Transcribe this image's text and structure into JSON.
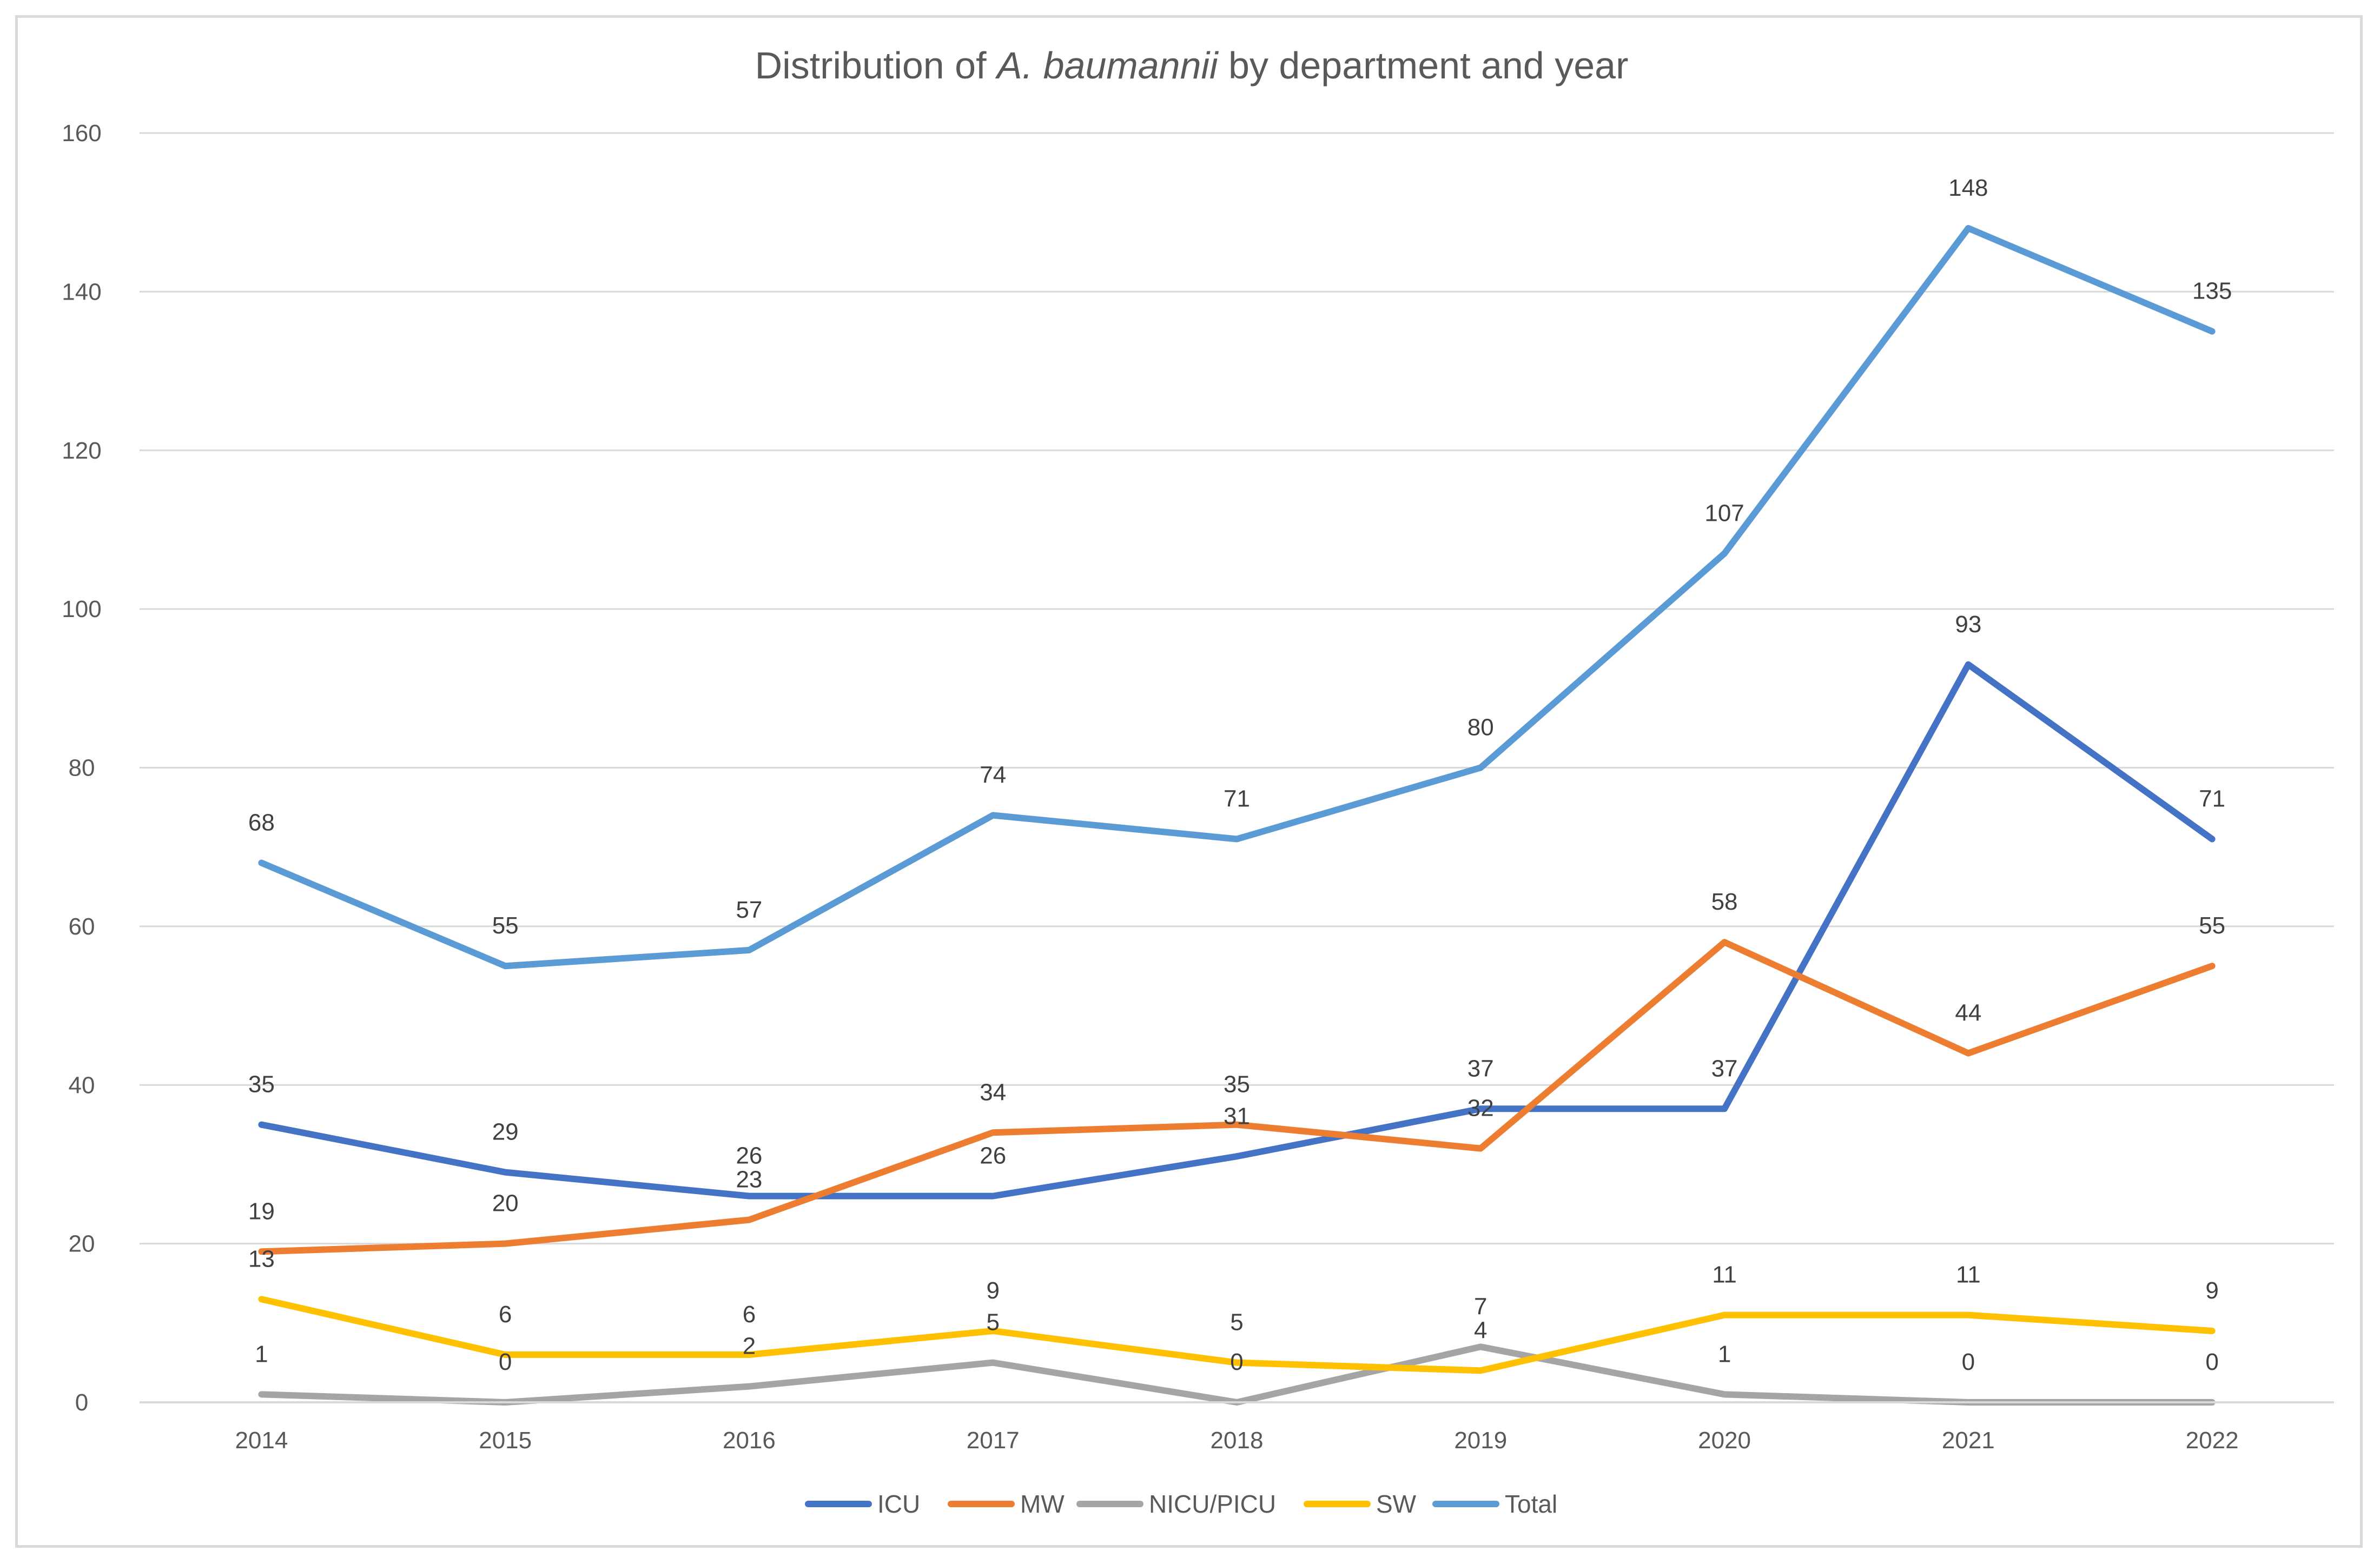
{
  "chart_data": {
    "type": "line",
    "title": {
      "prefix": "Distribution of ",
      "italic": "A. baumannii",
      "suffix": " by department and year"
    },
    "xlabel": "",
    "ylabel": "",
    "categories": [
      "2014",
      "2015",
      "2016",
      "2017",
      "2018",
      "2019",
      "2020",
      "2021",
      "2022"
    ],
    "ylim": [
      0,
      160
    ],
    "yticks": [
      "0",
      "20",
      "40",
      "60",
      "80",
      "100",
      "120",
      "140",
      "160"
    ],
    "grid": true,
    "legend_position": "bottom",
    "series": [
      {
        "name": "ICU",
        "color": "#4472C4",
        "values": [
          35,
          29,
          26,
          26,
          31,
          37,
          37,
          93,
          71
        ]
      },
      {
        "name": "MW",
        "color": "#ED7D31",
        "values": [
          19,
          20,
          23,
          34,
          35,
          32,
          58,
          44,
          55
        ]
      },
      {
        "name": "NICU/PICU",
        "color": "#A5A5A5",
        "values": [
          1,
          0,
          2,
          5,
          0,
          7,
          1,
          0,
          0
        ]
      },
      {
        "name": "SW",
        "color": "#FFC000",
        "values": [
          13,
          6,
          6,
          9,
          5,
          4,
          11,
          11,
          9
        ]
      },
      {
        "name": "Total",
        "color": "#5B9BD5",
        "values": [
          68,
          55,
          57,
          74,
          71,
          80,
          107,
          148,
          135
        ]
      }
    ]
  }
}
